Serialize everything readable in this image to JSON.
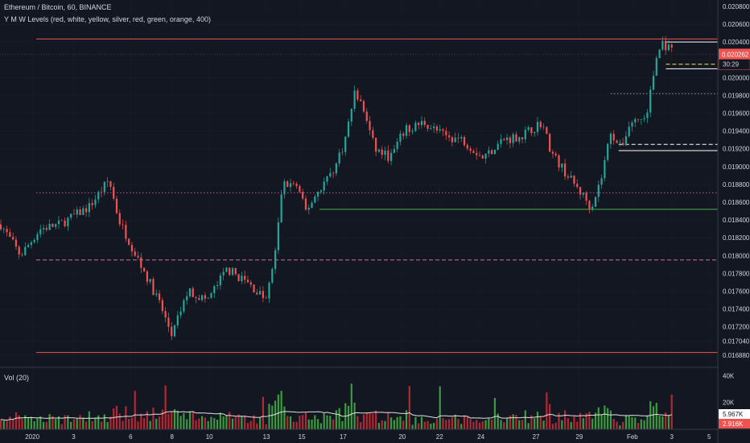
{
  "header": {
    "symbol_title": "Ethereum / Bitcoin, 60, BINANCE",
    "indicator_label": "Y M W Levels (red, white, yellow, silver, red, green, orange, 400)",
    "volume_label": "Vol (20)"
  },
  "colors": {
    "background": "#131722",
    "up": "#26a69a",
    "down": "#ef5350",
    "text": "#d1d4dc",
    "grid": "#2a2e39",
    "price_badge": "#ef5350",
    "volume_up": "#3c9a3f",
    "volume_down": "#b22833"
  },
  "chart_data": [
    {
      "type": "candlestick",
      "title": "Ethereum / Bitcoin, 60, BINANCE",
      "ylim": [
        0.01688,
        0.0208
      ],
      "y_ticks": [
        "0.020800",
        "0.020600",
        "0.020400",
        "0.020200",
        "0.020000",
        "0.019800",
        "0.019600",
        "0.019400",
        "0.019200",
        "0.019000",
        "0.018800",
        "0.018600",
        "0.018400",
        "0.018200",
        "0.018000",
        "0.017800",
        "0.017600",
        "0.017400",
        "0.017200",
        "0.017040",
        "0.016880"
      ],
      "x_ticks": [
        "2020",
        "3",
        "6",
        "8",
        "10",
        "13",
        "15",
        "17",
        "20",
        "22",
        "24",
        "27",
        "29",
        "Feb",
        "3",
        "5"
      ],
      "price_path": [
        {
          "day": 0.0,
          "price": 0.01835
        },
        {
          "day": 1.0,
          "price": 0.018
        },
        {
          "day": 2.0,
          "price": 0.0183
        },
        {
          "day": 3.0,
          "price": 0.01835
        },
        {
          "day": 4.5,
          "price": 0.01855
        },
        {
          "day": 5.5,
          "price": 0.01885
        },
        {
          "day": 6.0,
          "price": 0.0184
        },
        {
          "day": 7.0,
          "price": 0.01795
        },
        {
          "day": 8.0,
          "price": 0.0175
        },
        {
          "day": 8.7,
          "price": 0.0171
        },
        {
          "day": 9.5,
          "price": 0.0176
        },
        {
          "day": 10.5,
          "price": 0.0175
        },
        {
          "day": 11.5,
          "price": 0.01785
        },
        {
          "day": 12.5,
          "price": 0.0177
        },
        {
          "day": 13.5,
          "price": 0.0175
        },
        {
          "day": 14.0,
          "price": 0.0181
        },
        {
          "day": 14.3,
          "price": 0.0188
        },
        {
          "day": 15.0,
          "price": 0.0188
        },
        {
          "day": 15.5,
          "price": 0.0185
        },
        {
          "day": 16.2,
          "price": 0.01875
        },
        {
          "day": 17.0,
          "price": 0.019
        },
        {
          "day": 17.5,
          "price": 0.0193
        },
        {
          "day": 18.0,
          "price": 0.01985
        },
        {
          "day": 18.5,
          "price": 0.0196
        },
        {
          "day": 19.0,
          "price": 0.0192
        },
        {
          "day": 19.8,
          "price": 0.0191
        },
        {
          "day": 20.5,
          "price": 0.0194
        },
        {
          "day": 21.5,
          "price": 0.0195
        },
        {
          "day": 22.5,
          "price": 0.01935
        },
        {
          "day": 23.5,
          "price": 0.0193
        },
        {
          "day": 24.5,
          "price": 0.0191
        },
        {
          "day": 25.5,
          "price": 0.0193
        },
        {
          "day": 26.5,
          "price": 0.01935
        },
        {
          "day": 27.5,
          "price": 0.0195
        },
        {
          "day": 28.0,
          "price": 0.01915
        },
        {
          "day": 28.8,
          "price": 0.0189
        },
        {
          "day": 29.5,
          "price": 0.0187
        },
        {
          "day": 30.0,
          "price": 0.01855
        },
        {
          "day": 30.5,
          "price": 0.01885
        },
        {
          "day": 31.0,
          "price": 0.0194
        },
        {
          "day": 31.5,
          "price": 0.0192
        },
        {
          "day": 32.0,
          "price": 0.0195
        },
        {
          "day": 32.8,
          "price": 0.01955
        },
        {
          "day": 33.3,
          "price": 0.0202
        },
        {
          "day": 33.6,
          "price": 0.0204
        },
        {
          "day": 34.2,
          "price": 0.02026
        }
      ],
      "levels": [
        {
          "price": 0.020435,
          "color": "#ef5350",
          "style": "solid",
          "from_day": 0.0
        },
        {
          "price": 0.01691,
          "color": "#ef5350",
          "style": "solid",
          "from_day": 0.0
        },
        {
          "price": 0.018705,
          "color": "#e040a0",
          "style": "dotted",
          "from_day": 0.0
        },
        {
          "price": 0.01795,
          "color": "#f06292",
          "style": "dashed",
          "from_day": 0.0
        },
        {
          "price": 0.01852,
          "color": "#4caf50",
          "style": "solid",
          "from_day": 16.2
        },
        {
          "price": 0.01982,
          "color": "#9e9e9e",
          "style": "dotted",
          "from_day": 31.0
        },
        {
          "price": 0.01925,
          "color": "#ffffff",
          "style": "dashed",
          "from_day": 31.4
        },
        {
          "price": 0.01918,
          "color": "#ffffff",
          "style": "solid",
          "from_day": 31.4
        },
        {
          "price": 0.02015,
          "color": "#ffeb3b",
          "style": "dashed",
          "from_day": 33.8
        },
        {
          "price": 0.0201,
          "color": "#ffffff",
          "style": "solid",
          "from_day": 33.8
        },
        {
          "price": 0.0204,
          "color": "#ffffff",
          "style": "solid",
          "from_day": 33.8
        }
      ],
      "current_price": {
        "value": "0.020262",
        "countdown": "30:29"
      }
    },
    {
      "type": "bar",
      "title": "Vol (20)",
      "y_ticks": [
        "40K",
        "20K"
      ],
      "ylim": [
        0,
        45000
      ],
      "ma_length": 20,
      "last_values": {
        "ma": "5.967K",
        "volume": "2.916K"
      }
    }
  ]
}
